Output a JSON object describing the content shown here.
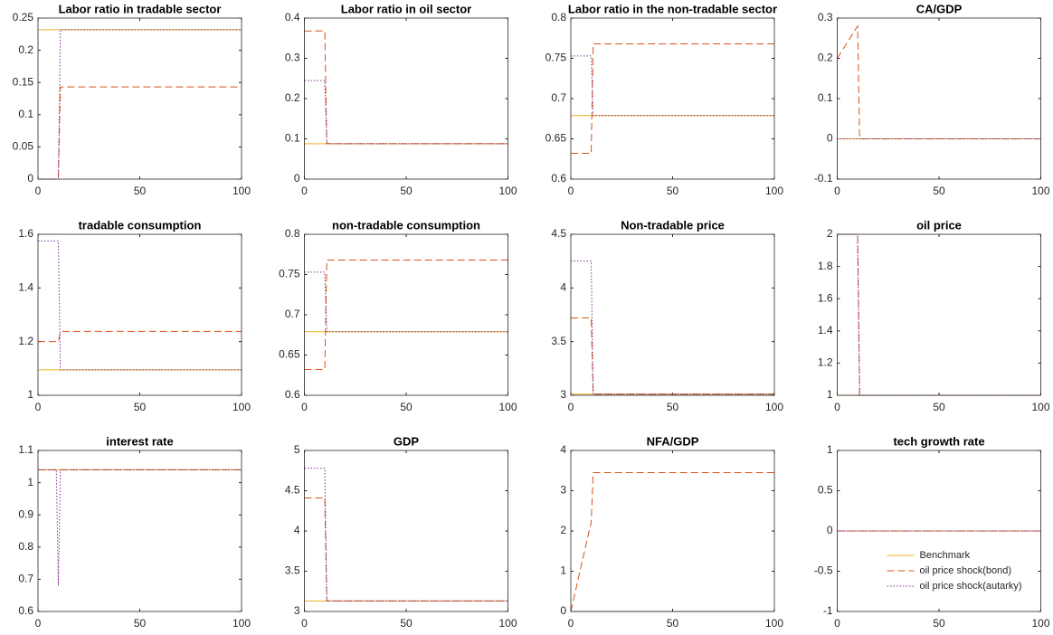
{
  "chart_data": [
    {
      "type": "line",
      "title": "Labor ratio in tradable sector",
      "x": [
        0,
        9,
        10,
        11,
        100
      ],
      "xlim": [
        0,
        100
      ],
      "xticks": [
        0,
        50,
        100
      ],
      "ylim": [
        0,
        0.25
      ],
      "yticks": [
        0,
        0.05,
        0.1,
        0.15,
        0.2,
        0.25
      ],
      "series": [
        {
          "color": "#EDB120",
          "line_style": "solid",
          "values": [
            0.232,
            0.232,
            0.232,
            0.232,
            0.232
          ]
        },
        {
          "color": "#D95319",
          "line_style": "dashed",
          "values": [
            0,
            0,
            0,
            0.143,
            0.143
          ]
        },
        {
          "color": "#7E2F8E",
          "line_style": "dotted",
          "values": [
            0,
            0,
            0,
            0.232,
            0.232
          ]
        }
      ]
    },
    {
      "type": "line",
      "title": "Labor ratio in oil sector",
      "x": [
        0,
        9,
        10,
        11,
        100
      ],
      "xlim": [
        0,
        100
      ],
      "xticks": [
        0,
        50,
        100
      ],
      "ylim": [
        0,
        0.4
      ],
      "yticks": [
        0,
        0.1,
        0.2,
        0.3,
        0.4
      ],
      "series": [
        {
          "color": "#EDB120",
          "line_style": "solid",
          "values": [
            0.088,
            0.088,
            0.088,
            0.088,
            0.088
          ]
        },
        {
          "color": "#D95319",
          "line_style": "dashed",
          "values": [
            0.368,
            0.368,
            0.368,
            0.088,
            0.088
          ]
        },
        {
          "color": "#7E2F8E",
          "line_style": "dotted",
          "values": [
            0.245,
            0.245,
            0.245,
            0.088,
            0.088
          ]
        }
      ]
    },
    {
      "type": "line",
      "title": "Labor ratio in the non-tradable sector",
      "x": [
        0,
        9,
        10,
        11,
        100
      ],
      "xlim": [
        0,
        100
      ],
      "xticks": [
        0,
        50,
        100
      ],
      "ylim": [
        0.6,
        0.8
      ],
      "yticks": [
        0.6,
        0.65,
        0.7,
        0.75,
        0.8
      ],
      "series": [
        {
          "color": "#EDB120",
          "line_style": "solid",
          "values": [
            0.679,
            0.679,
            0.679,
            0.679,
            0.679
          ]
        },
        {
          "color": "#D95319",
          "line_style": "dashed",
          "values": [
            0.632,
            0.632,
            0.632,
            0.768,
            0.768
          ]
        },
        {
          "color": "#7E2F8E",
          "line_style": "dotted",
          "values": [
            0.753,
            0.753,
            0.753,
            0.679,
            0.679
          ]
        }
      ]
    },
    {
      "type": "line",
      "title": "CA/GDP",
      "x": [
        0,
        9,
        10,
        11,
        100
      ],
      "xlim": [
        0,
        100
      ],
      "xticks": [
        0,
        50,
        100
      ],
      "ylim": [
        -0.1,
        0.3
      ],
      "yticks": [
        -0.1,
        0,
        0.1,
        0.2,
        0.3
      ],
      "series": [
        {
          "color": "#EDB120",
          "line_style": "solid",
          "values": [
            0,
            0,
            0,
            0,
            0
          ]
        },
        {
          "color": "#D95319",
          "line_style": "dashed",
          "values": [
            0.2,
            0.272,
            0.28,
            0,
            0
          ]
        },
        {
          "color": "#7E2F8E",
          "line_style": "dotted",
          "values": [
            0,
            0,
            0,
            0,
            0
          ]
        }
      ]
    },
    {
      "type": "line",
      "title": "tradable consumption",
      "x": [
        0,
        9,
        10,
        11,
        100
      ],
      "xlim": [
        0,
        100
      ],
      "xticks": [
        0,
        50,
        100
      ],
      "ylim": [
        1,
        1.6
      ],
      "yticks": [
        1,
        1.2,
        1.4,
        1.6
      ],
      "series": [
        {
          "color": "#EDB120",
          "line_style": "solid",
          "values": [
            1.095,
            1.095,
            1.095,
            1.095,
            1.095
          ]
        },
        {
          "color": "#D95319",
          "line_style": "dashed",
          "values": [
            1.2,
            1.2,
            1.2,
            1.238,
            1.238
          ]
        },
        {
          "color": "#7E2F8E",
          "line_style": "dotted",
          "values": [
            1.575,
            1.575,
            1.575,
            1.095,
            1.095
          ]
        }
      ]
    },
    {
      "type": "line",
      "title": "non-tradable consumption",
      "x": [
        0,
        9,
        10,
        11,
        100
      ],
      "xlim": [
        0,
        100
      ],
      "xticks": [
        0,
        50,
        100
      ],
      "ylim": [
        0.6,
        0.8
      ],
      "yticks": [
        0.6,
        0.65,
        0.7,
        0.75,
        0.8
      ],
      "series": [
        {
          "color": "#EDB120",
          "line_style": "solid",
          "values": [
            0.679,
            0.679,
            0.679,
            0.679,
            0.679
          ]
        },
        {
          "color": "#D95319",
          "line_style": "dashed",
          "values": [
            0.632,
            0.632,
            0.632,
            0.768,
            0.768
          ]
        },
        {
          "color": "#7E2F8E",
          "line_style": "dotted",
          "values": [
            0.753,
            0.753,
            0.753,
            0.679,
            0.679
          ]
        }
      ]
    },
    {
      "type": "line",
      "title": "Non-tradable price",
      "x": [
        0,
        9,
        10,
        11,
        100
      ],
      "xlim": [
        0,
        100
      ],
      "xticks": [
        0,
        50,
        100
      ],
      "ylim": [
        3,
        4.5
      ],
      "yticks": [
        3,
        3.5,
        4,
        4.5
      ],
      "series": [
        {
          "color": "#EDB120",
          "line_style": "solid",
          "values": [
            3.01,
            3.01,
            3.01,
            3.01,
            3.01
          ]
        },
        {
          "color": "#D95319",
          "line_style": "dashed",
          "values": [
            3.72,
            3.72,
            3.72,
            3.01,
            3.01
          ]
        },
        {
          "color": "#7E2F8E",
          "line_style": "dotted",
          "values": [
            4.25,
            4.25,
            4.25,
            3.01,
            3.01
          ]
        }
      ]
    },
    {
      "type": "line",
      "title": "oil price",
      "x": [
        0,
        9,
        10,
        11,
        100
      ],
      "xlim": [
        0,
        100
      ],
      "xticks": [
        0,
        50,
        100
      ],
      "ylim": [
        1,
        2
      ],
      "yticks": [
        1,
        1.2,
        1.4,
        1.6,
        1.8,
        2
      ],
      "series": [
        {
          "color": "#EDB120",
          "line_style": "solid",
          "values": [
            1,
            1,
            1,
            1,
            1
          ]
        },
        {
          "color": "#D95319",
          "line_style": "dashed",
          "values": [
            2,
            2,
            2,
            1,
            1
          ]
        },
        {
          "color": "#7E2F8E",
          "line_style": "dotted",
          "values": [
            2,
            2,
            2,
            1,
            1
          ]
        }
      ]
    },
    {
      "type": "line",
      "title": "interest rate",
      "x": [
        0,
        9,
        10,
        11,
        100
      ],
      "xlim": [
        0,
        100
      ],
      "xticks": [
        0,
        50,
        100
      ],
      "ylim": [
        0.6,
        1.1
      ],
      "yticks": [
        0.6,
        0.7,
        0.8,
        0.9,
        1,
        1.1
      ],
      "series": [
        {
          "color": "#EDB120",
          "line_style": "solid",
          "values": [
            1.04,
            1.04,
            1.04,
            1.04,
            1.04
          ]
        },
        {
          "color": "#D95319",
          "line_style": "dashed",
          "values": [
            1.04,
            1.04,
            1.04,
            1.04,
            1.04
          ]
        },
        {
          "color": "#7E2F8E",
          "line_style": "dotted",
          "values": [
            1.04,
            1.04,
            0.68,
            1.04,
            1.04
          ]
        }
      ]
    },
    {
      "type": "line",
      "title": "GDP",
      "x": [
        0,
        9,
        10,
        11,
        100
      ],
      "xlim": [
        0,
        100
      ],
      "xticks": [
        0,
        50,
        100
      ],
      "ylim": [
        3,
        5
      ],
      "yticks": [
        3,
        3.5,
        4,
        4.5,
        5
      ],
      "series": [
        {
          "color": "#EDB120",
          "line_style": "solid",
          "values": [
            3.13,
            3.13,
            3.13,
            3.13,
            3.13
          ]
        },
        {
          "color": "#D95319",
          "line_style": "dashed",
          "values": [
            4.41,
            4.41,
            4.41,
            3.13,
            3.13
          ]
        },
        {
          "color": "#7E2F8E",
          "line_style": "dotted",
          "values": [
            4.78,
            4.78,
            4.78,
            3.13,
            3.13
          ]
        }
      ]
    },
    {
      "type": "line",
      "title": "NFA/GDP",
      "x": [
        0,
        9,
        10,
        11,
        100
      ],
      "xlim": [
        0,
        100
      ],
      "xticks": [
        0,
        50,
        100
      ],
      "ylim": [
        0,
        4
      ],
      "yticks": [
        0,
        1,
        2,
        3,
        4
      ],
      "series": [
        {
          "color": "#EDB120",
          "line_style": "solid",
          "values": [
            0,
            0,
            0,
            0,
            0
          ]
        },
        {
          "color": "#D95319",
          "line_style": "dashed",
          "values": [
            0,
            2,
            2.2,
            3.45,
            3.45
          ]
        },
        {
          "color": "#7E2F8E",
          "line_style": "dotted",
          "values": [
            0,
            0,
            0,
            0,
            0
          ]
        }
      ]
    },
    {
      "type": "line",
      "title": "tech growth rate",
      "x": [
        0,
        9,
        10,
        11,
        100
      ],
      "xlim": [
        0,
        100
      ],
      "xticks": [
        0,
        50,
        100
      ],
      "ylim": [
        -1,
        1
      ],
      "yticks": [
        -1,
        -0.5,
        0,
        0.5,
        1
      ],
      "legend": "lower right",
      "series": [
        {
          "name": "Benchmark",
          "color": "#EDB120",
          "line_style": "solid",
          "values": [
            0,
            0,
            0,
            0,
            0
          ]
        },
        {
          "name": "oil price shock(bond)",
          "color": "#D95319",
          "line_style": "dashed",
          "values": [
            0,
            0,
            0,
            0,
            0
          ]
        },
        {
          "name": "oil price shock(autarky)",
          "color": "#7E2F8E",
          "line_style": "dotted",
          "values": [
            0,
            0,
            0,
            0,
            0
          ]
        }
      ]
    }
  ]
}
